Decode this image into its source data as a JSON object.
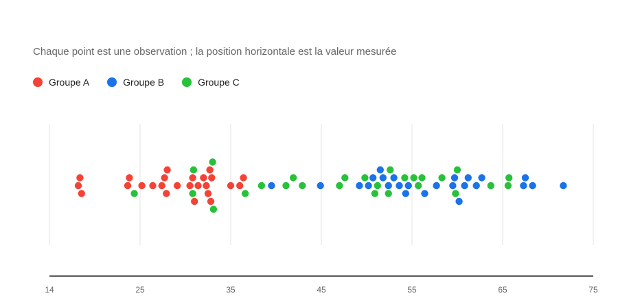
{
  "chart_data": {
    "type": "scatter",
    "subtitle": "Chaque point est une observation ; la position horizontale est la valeur mesurée",
    "xlim": [
      14,
      75
    ],
    "x_ticks": [
      14,
      25,
      35,
      45,
      55,
      65,
      75
    ],
    "grid": true,
    "legend_position": "top-left",
    "series": [
      {
        "name": "Groupe A",
        "color": "#F44336",
        "values": [
          17.5,
          17.7,
          17.9,
          23.5,
          23.7,
          25.2,
          26.4,
          27.4,
          27.7,
          27.9,
          28.0,
          29.1,
          30.5,
          30.8,
          31.0,
          31.4,
          32.0,
          32.3,
          32.5,
          32.7,
          32.8,
          32.9,
          35.0,
          36.0,
          36.4
        ]
      },
      {
        "name": "Groupe B",
        "color": "#1A73E8",
        "values": [
          39.5,
          44.9,
          49.2,
          50.2,
          50.7,
          51.5,
          51.8,
          52.4,
          53.0,
          53.6,
          54.3,
          54.6,
          56.4,
          57.7,
          59.5,
          59.7,
          60.2,
          60.8,
          61.2,
          62.1,
          62.7,
          67.3,
          67.5,
          68.3,
          71.7
        ]
      },
      {
        "name": "Groupe C",
        "color": "#27C13A",
        "values": [
          24.3,
          30.8,
          30.9,
          33.1,
          33.0,
          36.6,
          38.4,
          41.1,
          41.9,
          42.9,
          47.0,
          47.6,
          49.8,
          50.9,
          51.2,
          52.4,
          52.6,
          54.2,
          55.2,
          55.7,
          56.1,
          58.3,
          59.8,
          60.0,
          63.7,
          65.6,
          65.7
        ]
      }
    ]
  }
}
